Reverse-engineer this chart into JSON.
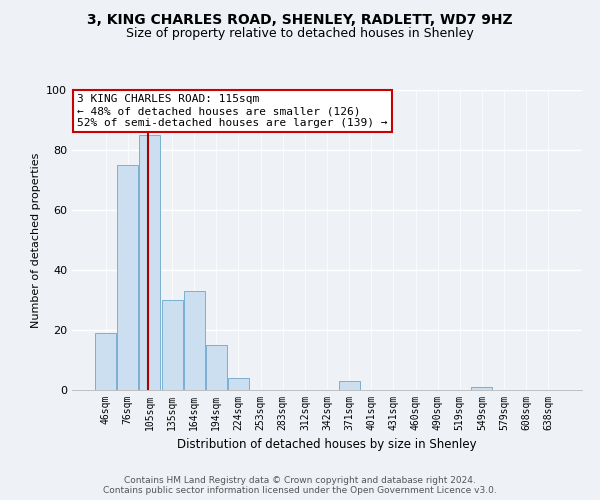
{
  "title1": "3, KING CHARLES ROAD, SHENLEY, RADLETT, WD7 9HZ",
  "title2": "Size of property relative to detached houses in Shenley",
  "xlabel": "Distribution of detached houses by size in Shenley",
  "ylabel": "Number of detached properties",
  "bin_labels": [
    "46sqm",
    "76sqm",
    "105sqm",
    "135sqm",
    "164sqm",
    "194sqm",
    "224sqm",
    "253sqm",
    "283sqm",
    "312sqm",
    "342sqm",
    "371sqm",
    "401sqm",
    "431sqm",
    "460sqm",
    "490sqm",
    "519sqm",
    "549sqm",
    "579sqm",
    "608sqm",
    "638sqm"
  ],
  "bar_heights": [
    19,
    75,
    85,
    30,
    33,
    15,
    4,
    0,
    0,
    0,
    0,
    3,
    0,
    0,
    0,
    0,
    0,
    1,
    0,
    0,
    0
  ],
  "bar_color": "#ccdff0",
  "bar_edge_color": "#7ab0d0",
  "property_line_color": "#aa0000",
  "annotation_title": "3 KING CHARLES ROAD: 115sqm",
  "annotation_line1": "← 48% of detached houses are smaller (126)",
  "annotation_line2": "52% of semi-detached houses are larger (139) →",
  "annotation_box_color": "#ffffff",
  "annotation_box_edge_color": "#cc0000",
  "ylim": [
    0,
    100
  ],
  "yticks": [
    0,
    20,
    40,
    60,
    80,
    100
  ],
  "footer1": "Contains HM Land Registry data © Crown copyright and database right 2024.",
  "footer2": "Contains public sector information licensed under the Open Government Licence v3.0.",
  "background_color": "#eef2f7"
}
